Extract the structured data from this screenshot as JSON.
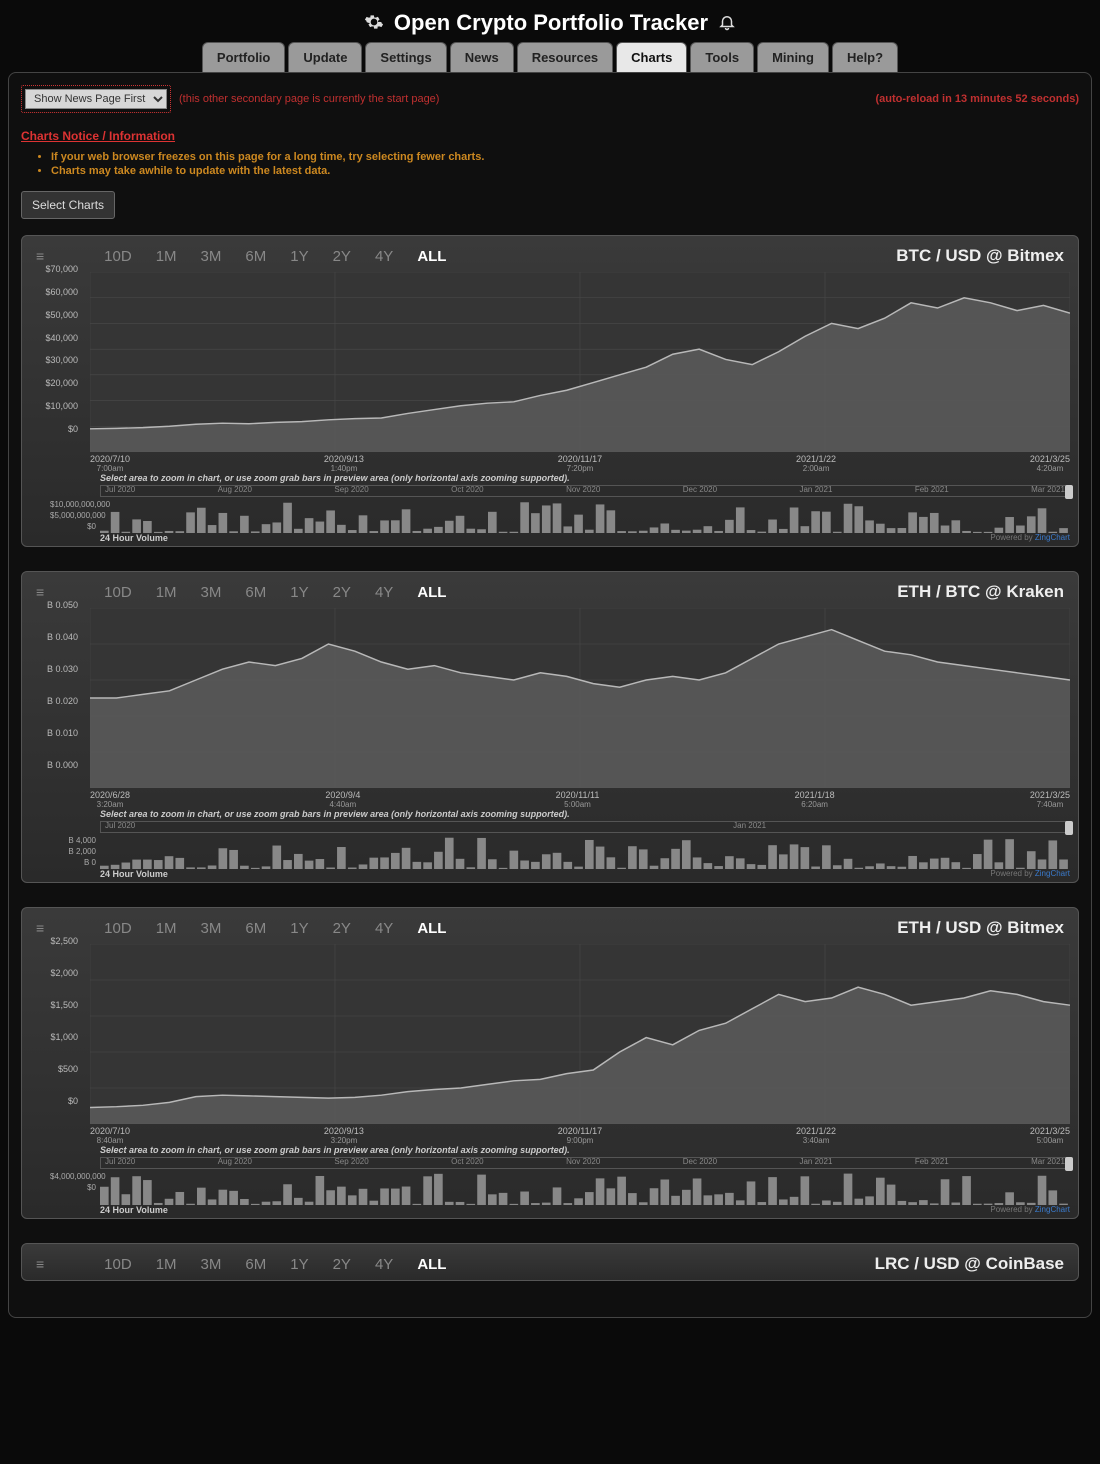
{
  "app": {
    "title": "Open Crypto Portfolio Tracker",
    "tabs": [
      "Portfolio",
      "Update",
      "Settings",
      "News",
      "Resources",
      "Charts",
      "Tools",
      "Mining",
      "Help?"
    ],
    "active_tab": "Charts"
  },
  "top": {
    "dropdown_selected": "Show News Page First",
    "startpage_note": "(this other secondary page is currently the start page)",
    "autoreload": "(auto-reload in 13 minutes 52 seconds)",
    "charts_notice": "Charts Notice / Information",
    "notice_items": [
      "If your web browser freezes on this page for a long time, try selecting fewer charts.",
      "Charts may take awhile to update with the latest data."
    ],
    "select_charts_btn": "Select Charts"
  },
  "range_labels": [
    "10D",
    "1M",
    "3M",
    "6M",
    "1Y",
    "2Y",
    "4Y",
    "ALL"
  ],
  "range_active": "ALL",
  "zoom_note": "Select area to zoom in chart, or use zoom grab bars in preview area (only horizontal axis zooming supported).",
  "vol_label": "24 Hour Volume",
  "powered_prefix": "Powered by ",
  "powered_brand": "ZingChart",
  "charts": [
    {
      "title": "BTC / USD @ Bitmex",
      "y_ticks": [
        "$70,000",
        "$60,000",
        "$50,000",
        "$40,000",
        "$30,000",
        "$20,000",
        "$10,000",
        "$0"
      ],
      "ylim": [
        0,
        70000
      ],
      "x_ticks": [
        {
          "d": "2020/7/10",
          "t": "7:00am"
        },
        {
          "d": "2020/9/13",
          "t": "1:40pm"
        },
        {
          "d": "2020/11/17",
          "t": "7:20pm"
        },
        {
          "d": "2021/1/22",
          "t": "2:00am"
        },
        {
          "d": "2021/3/25",
          "t": "4:20am"
        }
      ],
      "preview_months": [
        "Jul 2020",
        "Aug 2020",
        "Sep 2020",
        "Oct 2020",
        "Nov 2020",
        "Dec 2020",
        "Jan 2021",
        "Feb 2021",
        "Mar 2021"
      ],
      "vol_y": [
        "$10,000,000,000",
        "$5,000,000,000",
        "$0"
      ],
      "series": [
        9000,
        9200,
        9500,
        10000,
        10800,
        11200,
        11000,
        11500,
        11800,
        12500,
        13000,
        13200,
        15000,
        16500,
        18000,
        19000,
        19500,
        22000,
        24000,
        27000,
        30000,
        33000,
        38000,
        40000,
        36000,
        34000,
        39000,
        45000,
        50000,
        48000,
        52000,
        58000,
        56000,
        60000,
        58000,
        55000,
        57000,
        54000
      ],
      "line_color": "#b8b8b8",
      "fill_color": "#5a5a5a",
      "grid_color": "#4a4a4a",
      "bg_color": "#353535"
    },
    {
      "title": "ETH / BTC @ Kraken",
      "y_ticks": [
        "B 0.050",
        "B 0.040",
        "B 0.030",
        "B 0.020",
        "B 0.010",
        "B 0.000"
      ],
      "ylim": [
        0,
        0.05
      ],
      "x_ticks": [
        {
          "d": "2020/6/28",
          "t": "3:20am"
        },
        {
          "d": "2020/9/4",
          "t": "4:40am"
        },
        {
          "d": "2020/11/11",
          "t": "5:00am"
        },
        {
          "d": "2021/1/18",
          "t": "6:20am"
        },
        {
          "d": "2021/3/25",
          "t": "7:40am"
        }
      ],
      "preview_months": [
        "Jul 2020",
        "",
        "",
        "",
        "Jan 2021",
        "",
        ""
      ],
      "vol_y": [
        "B 4,000",
        "B 2,000",
        "B 0"
      ],
      "series": [
        0.025,
        0.025,
        0.026,
        0.027,
        0.03,
        0.033,
        0.035,
        0.034,
        0.036,
        0.04,
        0.038,
        0.035,
        0.033,
        0.034,
        0.032,
        0.031,
        0.03,
        0.032,
        0.031,
        0.029,
        0.028,
        0.03,
        0.031,
        0.03,
        0.032,
        0.036,
        0.04,
        0.042,
        0.044,
        0.041,
        0.038,
        0.037,
        0.035,
        0.034,
        0.033,
        0.032,
        0.031,
        0.03
      ],
      "line_color": "#b8b8b8",
      "fill_color": "#5a5a5a",
      "grid_color": "#4a4a4a",
      "bg_color": "#353535"
    },
    {
      "title": "ETH / USD @ Bitmex",
      "y_ticks": [
        "$2,500",
        "$2,000",
        "$1,500",
        "$1,000",
        "$500",
        "$0"
      ],
      "ylim": [
        0,
        2500
      ],
      "x_ticks": [
        {
          "d": "2020/7/10",
          "t": "8:40am"
        },
        {
          "d": "2020/9/13",
          "t": "3:20pm"
        },
        {
          "d": "2020/11/17",
          "t": "9:00pm"
        },
        {
          "d": "2021/1/22",
          "t": "3:40am"
        },
        {
          "d": "2021/3/25",
          "t": "5:00am"
        }
      ],
      "preview_months": [
        "Jul 2020",
        "Aug 2020",
        "Sep 2020",
        "Oct 2020",
        "Nov 2020",
        "Dec 2020",
        "Jan 2021",
        "Feb 2021",
        "Mar 2021"
      ],
      "vol_y": [
        "$4,000,000,000",
        "",
        "$0"
      ],
      "series": [
        230,
        240,
        260,
        300,
        380,
        400,
        390,
        380,
        370,
        360,
        370,
        400,
        450,
        480,
        500,
        550,
        600,
        620,
        700,
        750,
        1000,
        1200,
        1100,
        1300,
        1400,
        1600,
        1800,
        1700,
        1750,
        1900,
        1800,
        1650,
        1700,
        1750,
        1850,
        1800,
        1700,
        1650
      ],
      "line_color": "#b8b8b8",
      "fill_color": "#5a5a5a",
      "grid_color": "#4a4a4a",
      "bg_color": "#353535"
    },
    {
      "title": "LRC / USD @ CoinBase",
      "y_ticks": [],
      "ylim": [
        0,
        1
      ],
      "x_ticks": [],
      "preview_months": [],
      "vol_y": [],
      "series": [],
      "line_color": "#b8b8b8",
      "fill_color": "#5a5a5a",
      "grid_color": "#4a4a4a",
      "bg_color": "#353535",
      "partial": true
    }
  ]
}
